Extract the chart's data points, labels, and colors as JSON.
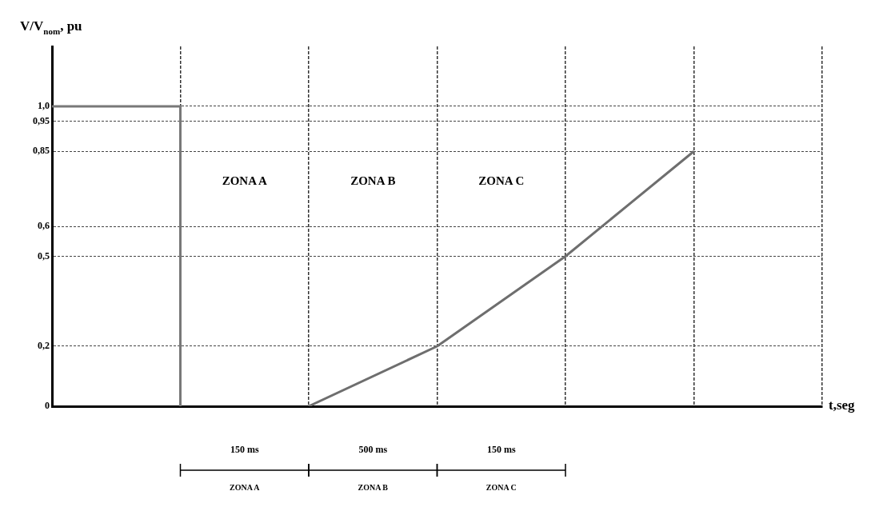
{
  "chart_data": {
    "type": "line",
    "xlabel": "t,seg",
    "ylabel": "V/V$_{nom}$, pu",
    "categories": [
      null,
      null,
      null,
      null,
      null,
      null,
      null
    ],
    "series": [
      {
        "type": "step",
        "color": "#787878",
        "values": [
          1.0,
          0,
          null,
          null,
          null,
          null,
          null
        ]
      },
      {
        "type": "line",
        "color": "#6e6e6e",
        "values": [
          null,
          null,
          0,
          0.2,
          0.5,
          0.85,
          null
        ]
      }
    ],
    "ylim": [
      0,
      1.2
    ],
    "yticks": [
      0,
      {
        "value": 0.2,
        "label": "0,2"
      },
      {
        "value": 0.5,
        "label": "0,5"
      },
      {
        "value": 0.6,
        "label": "0,6"
      },
      {
        "value": 0.85,
        "label": "0,85"
      },
      {
        "value": 0.95,
        "label": "0,95"
      },
      {
        "value": 1.0,
        "label": "1,0"
      }
    ],
    "tick_labels": "y",
    "grid": true,
    "legend": false,
    "marker": "none",
    "line_style": "solid",
    "annotations": [
      "ZONA A",
      "ZONA B",
      "ZONA C",
      "150 ms",
      "500 ms",
      "150 ms",
      "ZONA A",
      "ZONA B",
      "ZONA C"
    ]
  }
}
